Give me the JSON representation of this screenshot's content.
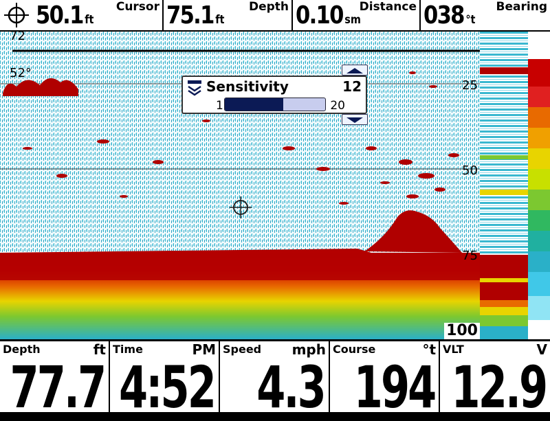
{
  "top_bar": {
    "depth": {
      "label": "Cursor",
      "value": "50.1",
      "unit": "ft"
    },
    "cursor": {
      "label": "Depth",
      "value": "75.1",
      "unit": "ft"
    },
    "distance": {
      "label": "Distance",
      "value": "0.10",
      "unit": "sm"
    },
    "bearing": {
      "label": "Bearing",
      "value": "038",
      "unit": "°t"
    }
  },
  "sonar": {
    "top_depth_label": "72",
    "temperature": "52°",
    "depth_scale": [
      "25",
      "50",
      "75",
      "100"
    ]
  },
  "sensitivity": {
    "title": "Sensitivity",
    "value": 12,
    "min": "1",
    "max": "20",
    "value_text": "12"
  },
  "bottom_bar": [
    {
      "label": "Depth",
      "unit": "ft",
      "value": "77.7"
    },
    {
      "label": "Time",
      "unit": "PM",
      "value": "4:52"
    },
    {
      "label": "Speed",
      "unit": "mph",
      "value": "4.3"
    },
    {
      "label": "Course",
      "unit": "°t",
      "value": "194"
    },
    {
      "label": "VLT",
      "unit": "V",
      "value": "12.9"
    }
  ],
  "colors": {
    "echo_strong": "#b00000",
    "echo_mid": "#e8d400",
    "echo_weak": "#2ab0c8",
    "slider_fill": "#0b1a55"
  }
}
